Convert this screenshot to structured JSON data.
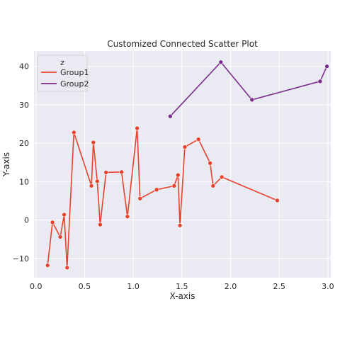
{
  "chart_data": {
    "type": "line",
    "title": "Customized Connected Scatter Plot",
    "xlabel": "X-axis",
    "ylabel": "Y-axis",
    "xlim": [
      -0.02,
      3.03
    ],
    "ylim": [
      -15,
      44
    ],
    "xticks": [
      "0.0",
      "0.5",
      "1.0",
      "1.5",
      "2.0",
      "2.5",
      "3.0"
    ],
    "xtick_values": [
      0.0,
      0.5,
      1.0,
      1.5,
      2.0,
      2.5,
      3.0
    ],
    "yticks": [
      "−10",
      "0",
      "10",
      "20",
      "30",
      "40"
    ],
    "ytick_values": [
      -10,
      0,
      10,
      20,
      30,
      40
    ],
    "grid": true,
    "background": "#eaeaf2",
    "legend": {
      "title": "z",
      "placement": "top-left"
    },
    "series": [
      {
        "name": "Group1",
        "color": "#e8412b",
        "points": [
          [
            0.12,
            -11.8
          ],
          [
            0.17,
            -0.6
          ],
          [
            0.25,
            -4.4
          ],
          [
            0.29,
            1.4
          ],
          [
            0.32,
            -12.4
          ],
          [
            0.39,
            22.8
          ],
          [
            0.57,
            8.9
          ],
          [
            0.59,
            20.2
          ],
          [
            0.63,
            10.1
          ],
          [
            0.66,
            -1.2
          ],
          [
            0.72,
            12.4
          ],
          [
            0.88,
            12.5
          ],
          [
            0.94,
            0.9
          ],
          [
            1.04,
            23.9
          ],
          [
            1.07,
            5.6
          ],
          [
            1.24,
            7.9
          ],
          [
            1.42,
            8.9
          ],
          [
            1.46,
            11.7
          ],
          [
            1.48,
            -1.4
          ],
          [
            1.53,
            19.0
          ],
          [
            1.67,
            21.0
          ],
          [
            1.79,
            14.8
          ],
          [
            1.82,
            8.9
          ],
          [
            1.91,
            11.2
          ],
          [
            2.48,
            5.1
          ]
        ]
      },
      {
        "name": "Group2",
        "color": "#7b2d8e",
        "points": [
          [
            1.38,
            27.0
          ],
          [
            1.9,
            41.1
          ],
          [
            2.22,
            31.3
          ],
          [
            2.92,
            36.1
          ],
          [
            2.99,
            40.0
          ]
        ]
      }
    ]
  }
}
